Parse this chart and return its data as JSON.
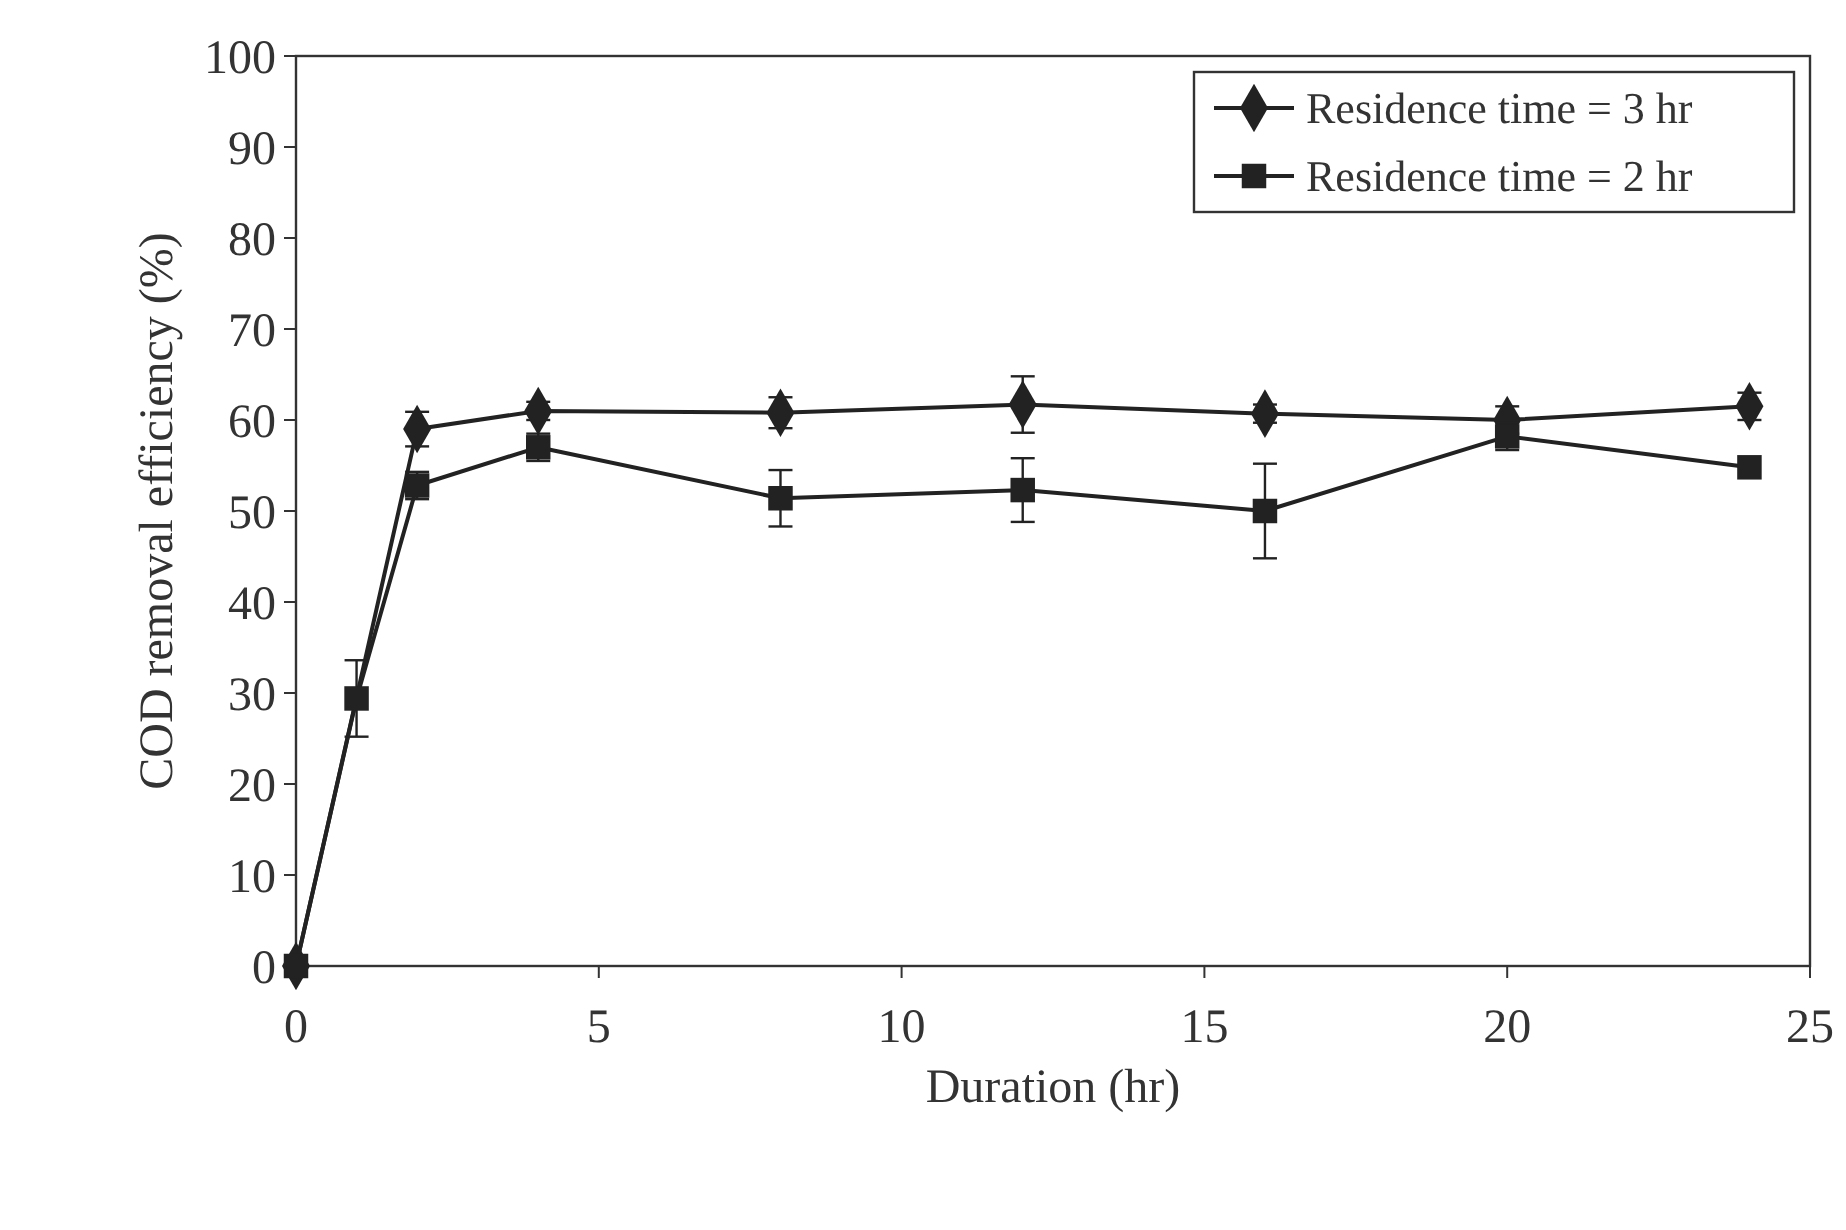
{
  "chart_data": {
    "type": "line",
    "xlabel": "Duration (hr)",
    "ylabel": "COD removal efficiency (%)",
    "xlim": [
      0,
      25
    ],
    "xticks": [
      0,
      5,
      10,
      15,
      20,
      25
    ],
    "ylim": [
      0,
      100
    ],
    "yticks": [
      0,
      10,
      20,
      30,
      40,
      50,
      60,
      70,
      80,
      90,
      100
    ],
    "grid": false,
    "legend": "top right",
    "series": [
      {
        "name": "Residence time = 3 hr",
        "color": "#222222",
        "marker": "diamond",
        "x": [
          0,
          1,
          2,
          4,
          8,
          12,
          16,
          20,
          24
        ],
        "values": [
          0,
          null,
          59,
          61,
          60.8,
          61.7,
          60.7,
          60,
          61.5
        ],
        "errors": [
          null,
          null,
          1.9,
          1,
          1.7,
          3.1,
          1,
          1.5,
          1.5
        ]
      },
      {
        "name": "Residence time = 2 hr",
        "color": "#222222",
        "marker": "square",
        "x": [
          0,
          1,
          2,
          4,
          8,
          12,
          16,
          20,
          24
        ],
        "values": [
          0,
          29.4,
          52.8,
          57,
          51.4,
          52.3,
          50,
          58.2,
          54.8
        ],
        "errors": [
          null,
          4.2,
          1.5,
          1.5,
          3.1,
          3.5,
          5.2,
          1.5,
          null
        ]
      }
    ]
  }
}
